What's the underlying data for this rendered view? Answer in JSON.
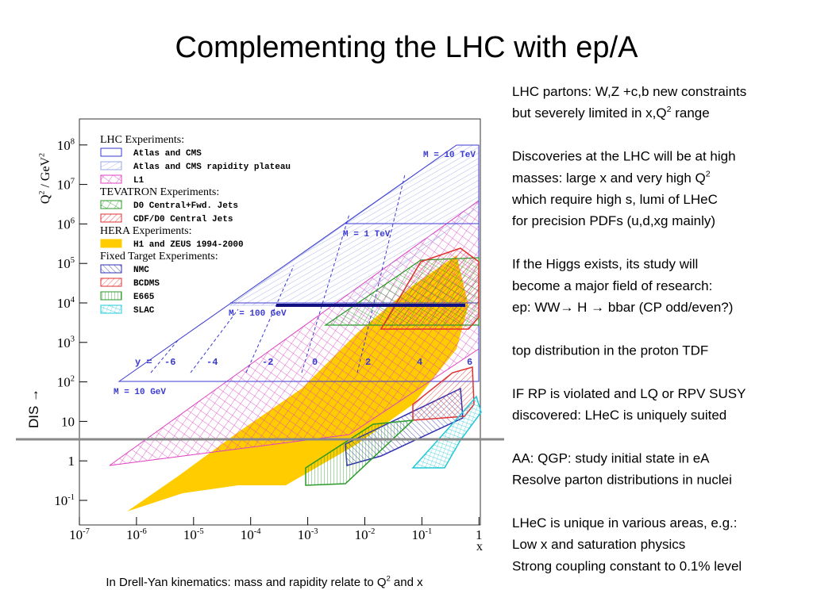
{
  "title": "Complementing the LHC with ep/A",
  "side_label": "DIS →",
  "caption": [
    "In Drell-Yan kinematics: mass and rapidity relate to Q",
    "2",
    " and x"
  ],
  "figure": {
    "y_label": [
      "Q",
      "2",
      " / GeV",
      "2"
    ],
    "x_label": "x",
    "x_ticks": [
      [
        "10",
        "-7"
      ],
      [
        "10",
        "-6"
      ],
      [
        "10",
        "-5"
      ],
      [
        "10",
        "-4"
      ],
      [
        "10",
        "-3"
      ],
      [
        "10",
        "-2"
      ],
      [
        "10",
        "-1"
      ],
      [
        "1"
      ]
    ],
    "y_ticks": [
      [
        "10",
        "-1"
      ],
      [
        "1"
      ],
      [
        "10"
      ],
      [
        "10",
        "2"
      ],
      [
        "10",
        "3"
      ],
      [
        "10",
        "4"
      ],
      [
        "10",
        "5"
      ],
      [
        "10",
        "6"
      ],
      [
        "10",
        "7"
      ],
      [
        "10",
        "8"
      ]
    ],
    "legend": [
      {
        "header": "LHC Experiments:",
        "items": [
          "Atlas and CMS",
          "Atlas and CMS rapidity plateau",
          "L1"
        ]
      },
      {
        "header": "TEVATRON Experiments:",
        "items": [
          "D0 Central+Fwd. Jets",
          "CDF/D0 Central Jets"
        ]
      },
      {
        "header": "HERA Experiments:",
        "items": [
          "H1 and ZEUS 1994-2000"
        ]
      },
      {
        "header": "Fixed Target Experiments:",
        "items": [
          "NMC",
          "BCDMS",
          "E665",
          "SLAC"
        ]
      }
    ],
    "mass_labels": [
      "M = 10 TeV",
      "M = 1 TeV",
      "M = 100 GeV",
      "M = 10 GeV"
    ],
    "rapidity_labels": [
      "y =",
      "-6",
      "-4",
      "-2",
      "0",
      "2",
      "4",
      "6"
    ]
  },
  "notes": [
    [
      [
        "LHC partons: W,Z +c,b new constraints"
      ],
      [
        "but severely limited in x,Q",
        "2",
        " range"
      ]
    ],
    [
      [
        "Discoveries at the LHC will be at high"
      ],
      [
        "masses: large x and very high Q",
        "2"
      ],
      [
        "which require high s, lumi of LHeC"
      ],
      [
        "for precision PDFs (u,d,xg mainly)"
      ]
    ],
    [
      [
        "If the Higgs exists, its study will"
      ],
      [
        "become a major field of research:"
      ],
      [
        "ep:  WW→ H → bbar (CP odd/even?)"
      ]
    ],
    [
      [
        "top distribution in the proton TDF"
      ]
    ],
    [
      [
        "IF RP is violated and LQ or RPV SUSY"
      ],
      [
        "discovered: LHeC is uniquely suited"
      ]
    ],
    [
      [
        "AA: QGP: study initial state in eA"
      ],
      [
        "Resolve parton distributions in nuclei"
      ]
    ],
    [
      [
        "LHeC is unique in various areas, e.g.:"
      ],
      [
        "Low x and saturation physics"
      ],
      [
        "Strong coupling constant to 0.1% level"
      ]
    ]
  ]
}
